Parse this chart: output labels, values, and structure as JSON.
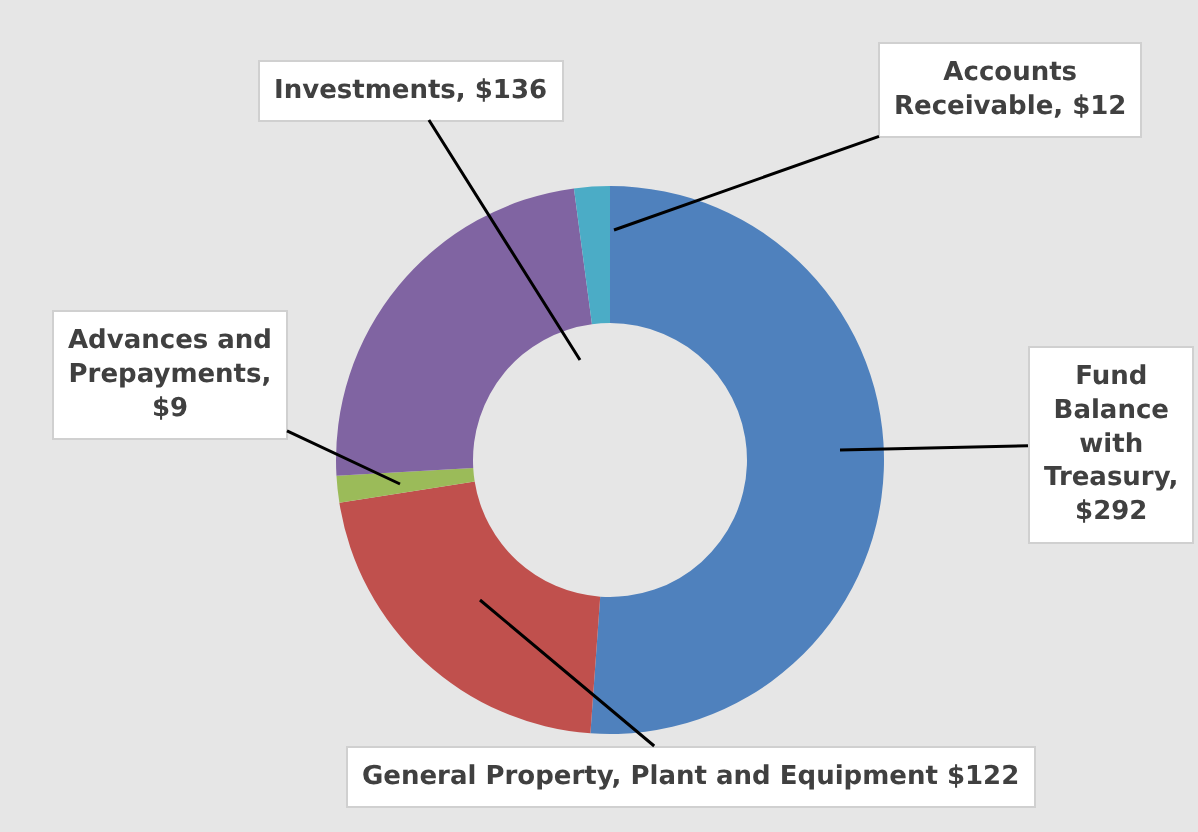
{
  "chart_data": {
    "type": "donut",
    "categories": [
      "Fund\nBalance\nwith\nTreasury,\n$292",
      "General Property, Plant and Equipment $122",
      "Advances and\nPrepayments,\n$9",
      "Investments, $136",
      "Accounts\nReceivable, $12"
    ],
    "values": [
      292,
      122,
      9,
      136,
      12
    ],
    "colors": [
      "#4f81bd",
      "#c0504d",
      "#9bbb59",
      "#8064a2",
      "#4bacc6"
    ]
  }
}
